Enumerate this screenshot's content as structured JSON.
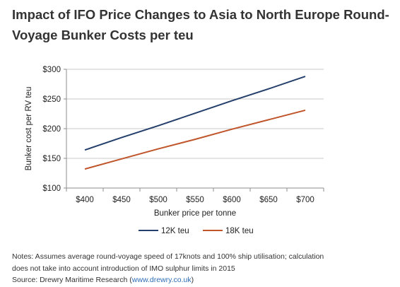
{
  "page": {
    "title_line1": "Impact of IFO Price Changes to Asia to North Europe Round-",
    "title_line2": "Voyage Bunker Costs per teu",
    "notes_line1": "Notes: Assumes average round-voyage speed of 17knots and 100% ship utilisation; calculation",
    "notes_line2": "does not take into account introduction of IMO sulphur limits in 2015",
    "source_prefix": "Source: Drewry Maritime Research (",
    "source_link": "www.drewry.co.uk",
    "source_suffix": ")"
  },
  "chart_data": {
    "type": "line",
    "title": "Impact of IFO Price Changes to Asia to North Europe Round-Voyage Bunker Costs per teu",
    "xlabel": "Bunker price per tonne",
    "ylabel": "Bunker cost per RV teu",
    "categories": [
      "$400",
      "$450",
      "$500",
      "$550",
      "$600",
      "$650",
      "$700"
    ],
    "x": [
      400,
      450,
      500,
      550,
      600,
      650,
      700
    ],
    "ylim": [
      100,
      300
    ],
    "yticks": [
      100,
      150,
      200,
      250,
      300
    ],
    "ytick_labels": [
      "$100",
      "$150",
      "$200",
      "$250",
      "$300"
    ],
    "grid": true,
    "legend_position": "bottom",
    "series": [
      {
        "name": "12K teu",
        "color": "#243f6b",
        "values": [
          164,
          185,
          205,
          226,
          247,
          267,
          288
        ]
      },
      {
        "name": "18K teu",
        "color": "#c0552b",
        "values": [
          132,
          149,
          166,
          182,
          199,
          215,
          231
        ]
      }
    ]
  }
}
